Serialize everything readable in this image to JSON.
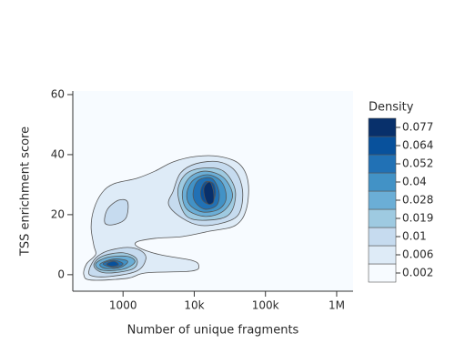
{
  "chart_data": {
    "type": "contour",
    "x_label": "Number of unique fragments",
    "y_label": "TSS enrichment score",
    "xscale": "log",
    "xlim": [
      197,
      1700000
    ],
    "ylim": [
      -5.5,
      61.2
    ],
    "xticks": [
      1000,
      {
        "value": 10000,
        "label": "10k"
      },
      {
        "value": 100000,
        "label": "100k"
      },
      {
        "value": 1000000,
        "label": "1M"
      }
    ],
    "yticks": [
      0,
      20,
      40,
      60
    ],
    "background": "#f7fbff",
    "line_color": "#555555",
    "colorbar": {
      "title": "Density",
      "ticks": [
        0.002,
        0.006,
        0.01,
        0.019,
        0.028,
        0.04,
        0.052,
        0.064,
        0.077
      ],
      "colors": [
        "#f7fbff",
        "#deebf7",
        "#c6dbef",
        "#9ecae1",
        "#6baed6",
        "#4292c6",
        "#2171b5",
        "#08519c",
        "#08306b"
      ]
    },
    "contours": [
      [
        [
          [
            281,
            0
          ],
          [
            307,
            3.6
          ],
          [
            412,
            6.7
          ],
          [
            389,
            9.7
          ],
          [
            356,
            15.8
          ],
          [
            389,
            21.8
          ],
          [
            507,
            27.3
          ],
          [
            745,
            30.3
          ],
          [
            1556,
            32.1
          ],
          [
            2809,
            34.5
          ],
          [
            5070,
            37.6
          ],
          [
            10600,
            39.4
          ],
          [
            22180,
            39.4
          ],
          [
            42480,
            37.0
          ],
          [
            57040,
            30.9
          ],
          [
            53830,
            21.8
          ],
          [
            37760,
            16.4
          ],
          [
            16520,
            14.5
          ],
          [
            6810,
            12.7
          ],
          [
            2809,
            12.1
          ],
          [
            1556,
            10.9
          ],
          [
            1652,
            9.1
          ],
          [
            3255,
            6.7
          ],
          [
            9155,
            4.8
          ],
          [
            11590,
            3.0
          ],
          [
            9155,
            1.2
          ],
          [
            2092,
            0.6
          ],
          [
            1159,
            -1.2
          ],
          [
            356,
            -1.8
          ]
        ]
      ],
      [
        [
          [
            336,
            1.8
          ],
          [
            412,
            5.5
          ],
          [
            605,
            7.9
          ],
          [
            1159,
            9.1
          ],
          [
            1803,
            7.9
          ],
          [
            2092,
            5.2
          ],
          [
            1556,
            1.2
          ],
          [
            643,
            -0.6
          ],
          [
            356,
            -0.3
          ]
        ],
        [
          [
            555,
            17.3
          ],
          [
            605,
            21.8
          ],
          [
            863,
            24.8
          ],
          [
            1159,
            24.2
          ],
          [
            1093,
            18.8
          ],
          [
            745,
            16.7
          ]
        ],
        [
          [
            5070,
            27.9
          ],
          [
            6427,
            33.9
          ],
          [
            10600,
            37.0
          ],
          [
            22180,
            37.6
          ],
          [
            37760,
            34.5
          ],
          [
            47750,
            27.9
          ],
          [
            42480,
            20.3
          ],
          [
            25700,
            17.3
          ],
          [
            12300,
            16.4
          ],
          [
            6810,
            18.8
          ],
          [
            4375,
            23.3
          ]
        ]
      ],
      [
        [
          [
            389,
            3.0
          ],
          [
            507,
            6.1
          ],
          [
            1000,
            7.3
          ],
          [
            1556,
            5.2
          ],
          [
            1343,
            1.8
          ],
          [
            555,
            0.6
          ]
        ],
        [
          [
            5875,
            27.3
          ],
          [
            7440,
            33.3
          ],
          [
            13040,
            35.5
          ],
          [
            25700,
            34.5
          ],
          [
            37760,
            27.9
          ],
          [
            31620,
            20.3
          ],
          [
            16520,
            18.2
          ],
          [
            7890,
            19.4
          ]
        ]
      ],
      [
        [
          [
            412,
            3.6
          ],
          [
            605,
            5.8
          ],
          [
            1159,
            6.1
          ],
          [
            1468,
            4.2
          ],
          [
            1000,
            1.8
          ],
          [
            507,
            1.5
          ]
        ],
        [
          [
            6810,
            27.3
          ],
          [
            8630,
            32.4
          ],
          [
            14250,
            34.5
          ],
          [
            25700,
            32.4
          ],
          [
            34500,
            26.4
          ],
          [
            25700,
            21.2
          ],
          [
            14250,
            19.4
          ],
          [
            7890,
            21.8
          ]
        ]
      ],
      [
        [
          [
            478,
            3.6
          ],
          [
            745,
            5.2
          ],
          [
            1159,
            4.5
          ],
          [
            915,
            2.4
          ],
          [
            555,
            2.1
          ]
        ],
        [
          [
            7890,
            27.3
          ],
          [
            9700,
            31.5
          ],
          [
            15560,
            33.3
          ],
          [
            24250,
            30.9
          ],
          [
            28120,
            25.5
          ],
          [
            22180,
            21.8
          ],
          [
            13040,
            20.9
          ],
          [
            8630,
            23.3
          ]
        ]
      ],
      [
        [
          [
            522,
            3.6
          ],
          [
            745,
            4.8
          ],
          [
            1000,
            3.6
          ],
          [
            745,
            2.4
          ]
        ],
        [
          [
            9700,
            27.9
          ],
          [
            11590,
            31.5
          ],
          [
            17540,
            32.1
          ],
          [
            22180,
            27.9
          ],
          [
            20940,
            23.3
          ],
          [
            14250,
            21.8
          ],
          [
            10300,
            24.2
          ]
        ]
      ],
      [
        [
          [
            588,
            3.6
          ],
          [
            745,
            4.5
          ],
          [
            863,
            3.3
          ],
          [
            681,
            2.7
          ]
        ],
        [
          [
            12300,
            27.9
          ],
          [
            14250,
            30.9
          ],
          [
            18580,
            30.3
          ],
          [
            19720,
            26.4
          ],
          [
            16520,
            23.6
          ],
          [
            13040,
            24.8
          ]
        ]
      ],
      [
        [
          [
            13840,
            29.4
          ],
          [
            16520,
            30.9
          ],
          [
            18580,
            27.9
          ],
          [
            18580,
            24.2
          ],
          [
            15560,
            23.6
          ],
          [
            13840,
            26.4
          ]
        ]
      ]
    ]
  }
}
